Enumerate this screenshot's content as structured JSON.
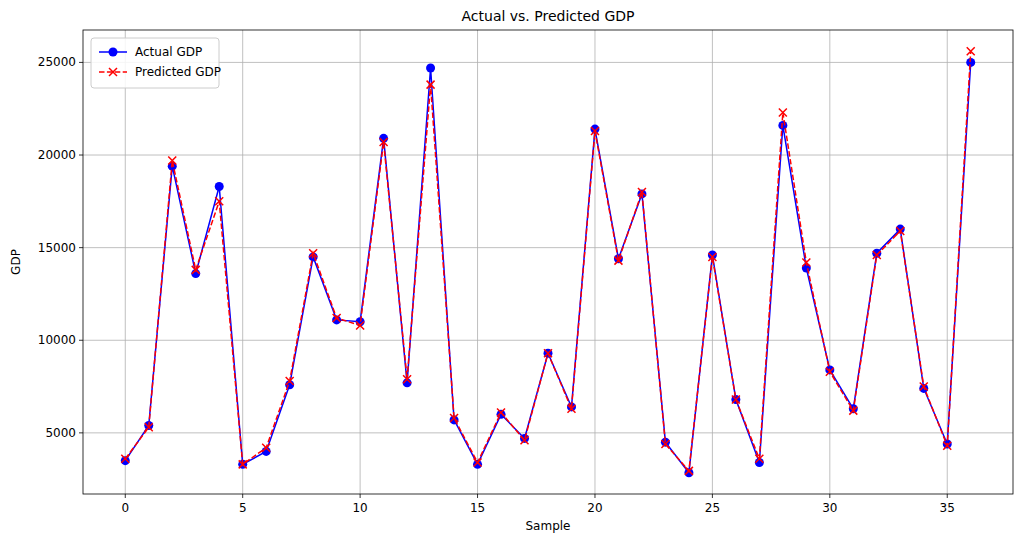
{
  "chart_data": {
    "type": "line",
    "title": "Actual vs. Predicted GDP",
    "x_label": "Sample",
    "y_label": "GDP",
    "x": [
      0,
      1,
      2,
      3,
      4,
      5,
      6,
      7,
      8,
      9,
      10,
      11,
      12,
      13,
      14,
      15,
      16,
      17,
      18,
      19,
      20,
      21,
      22,
      23,
      24,
      25,
      26,
      27,
      28,
      29,
      30,
      31,
      32,
      33,
      34,
      35,
      36
    ],
    "series": [
      {
        "name": "Actual GDP",
        "color": "#0000ff",
        "marker": "circle",
        "line_style": "solid",
        "values": [
          3500,
          5400,
          19400,
          13600,
          18300,
          3300,
          4000,
          7600,
          14500,
          11100,
          11000,
          20900,
          7700,
          24700,
          5700,
          3300,
          6000,
          4700,
          9300,
          6400,
          21400,
          14400,
          17900,
          4500,
          2850,
          14600,
          6800,
          3400,
          21600,
          13900,
          8400,
          6300,
          14700,
          16000,
          7400,
          4400,
          25000
        ]
      },
      {
        "name": "Predicted GDP",
        "color": "#ff0000",
        "marker": "x",
        "line_style": "dashed",
        "values": [
          3600,
          5300,
          19700,
          13800,
          17500,
          3300,
          4200,
          7800,
          14700,
          11200,
          10800,
          20700,
          7900,
          23800,
          5800,
          3400,
          6100,
          4600,
          9300,
          6300,
          21300,
          14300,
          18000,
          4400,
          2950,
          14500,
          6800,
          3600,
          22300,
          14200,
          8300,
          6200,
          14600,
          15900,
          7500,
          4300,
          25600
        ]
      }
    ],
    "xlim": [
      -1.8,
      37.8
    ],
    "xticks": [
      0,
      5,
      10,
      15,
      20,
      25,
      30,
      35
    ],
    "ylim": [
      1700,
      26750
    ],
    "yticks": [
      5000,
      10000,
      15000,
      20000,
      25000
    ],
    "grid": true,
    "legend": "upper-left"
  }
}
